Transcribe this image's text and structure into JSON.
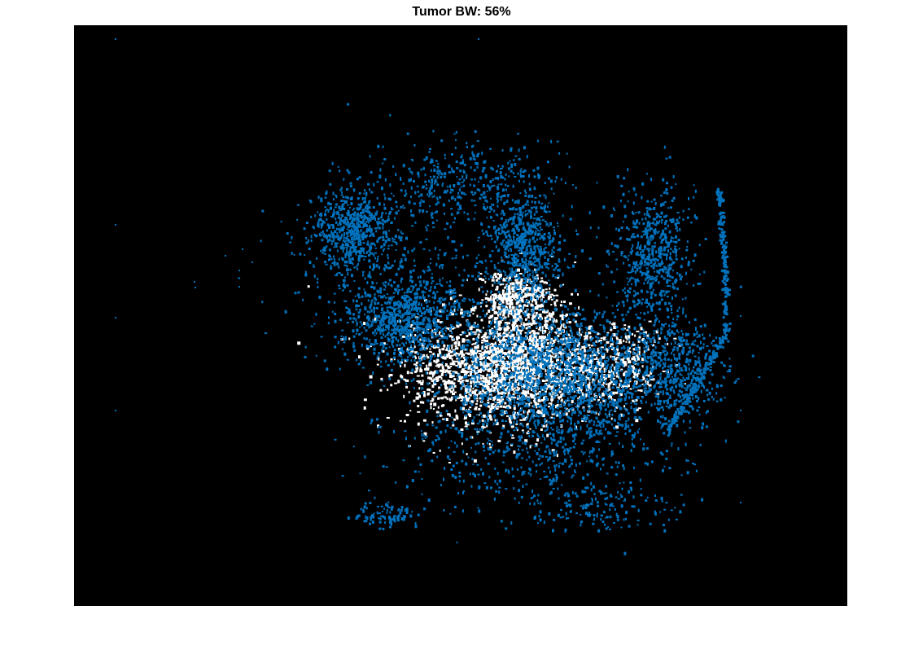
{
  "figure": {
    "title": "Tumor BW: 56%"
  },
  "colors": {
    "background": "#000000",
    "tumor_mask": "#ffffff",
    "cell_points": "#0072bd",
    "page": "#ffffff"
  }
}
